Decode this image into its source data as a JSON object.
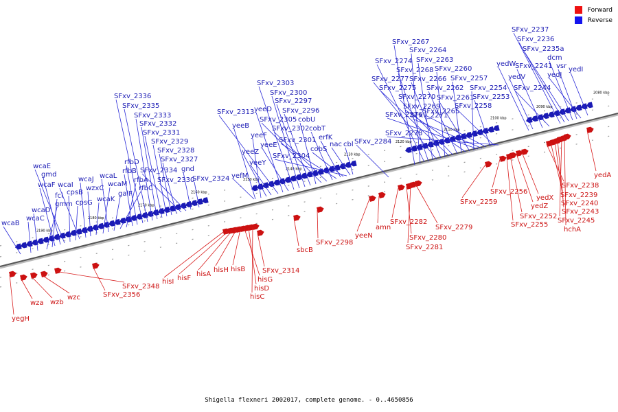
{
  "legend": {
    "forward": {
      "label": "Forward",
      "color": "#ee1111"
    },
    "reverse": {
      "label": "Reverse",
      "color": "#1414ee"
    }
  },
  "caption": "Shigella flexneri 2002017, complete genome. - 0..4650856",
  "axis_color": "#555555",
  "tick_labels": [
    "2080 kbp",
    "2090 kbp",
    "2100 kbp",
    "2110 kbp",
    "2120 kbp",
    "2130 kbp",
    "2140 kbp",
    "2150 kbp",
    "2160 kbp",
    "2170 kbp",
    "2180 kbp",
    "2190 kbp"
  ],
  "reverse_genes": [
    "wcaB",
    "wcaC",
    "wcaD",
    "gmm",
    "fcl",
    "wcaF",
    "gmd",
    "wcaE",
    "cpsB",
    "cpsG",
    "wcaI",
    "wcaJ",
    "wzxC",
    "wcaK",
    "wcaM",
    "wcaL",
    "galF",
    "rfbC",
    "rfbA",
    "rfbB",
    "rfbD",
    "SFxv_2336",
    "SFxv_2335",
    "SFxv_2333",
    "SFxv_2332",
    "SFxv_2331",
    "SFxv_2329",
    "SFxv_2328",
    "SFxv_2327",
    "SFxv_2334",
    "SFxv_2330",
    "gnd",
    "SFxv_2324",
    "yeeB",
    "yeeF",
    "yeeZ",
    "yeeY",
    "yefM",
    "SFxv_2313",
    "yeeD",
    "yeeE",
    "SFxv_2303",
    "SFxv_2300",
    "SFxv_2297",
    "SFxv_2296",
    "cobU",
    "SFxv_2305",
    "SFxv_2302",
    "cobT",
    "SFxv_2301",
    "erfK",
    "cobS",
    "SFxv_2304",
    "nac",
    "cbl",
    "SFxv_2284",
    "SFxv_2267",
    "SFxv_2264",
    "SFxv_2274",
    "SFxv_2268",
    "SFxv_2263",
    "SFxv_2277",
    "SFxv_2266",
    "SFxv_2260",
    "SFxv_2275",
    "SFxv_2270",
    "SFxv_2262",
    "SFxv_2257",
    "SFxv_2269",
    "SFxv_2261",
    "SFxv_2254",
    "SFxv_2276",
    "SFxv_2271",
    "SFxv_2265",
    "SFxv_2253",
    "SFxv_2258",
    "SFxv_2278",
    "SFxv_2237",
    "SFxv_2236",
    "SFxv_2235a",
    "dcm",
    "yedW",
    "SFxv_2241",
    "vsr",
    "yedJ",
    "yedI",
    "yedV",
    "SFxv_2244"
  ],
  "forward_genes": [
    "yegH",
    "wza",
    "wzb",
    "wzc",
    "SFxv_2348",
    "SFxv_2356",
    "hisI",
    "hisF",
    "hisA",
    "hisH",
    "hisB",
    "hisG",
    "hisD",
    "hisC",
    "SFxv_2314",
    "sbcB",
    "SFxv_2298",
    "yeeN",
    "amn",
    "SFxv_2282",
    "SFxv_2280",
    "SFxv_2281",
    "SFxv_2279",
    "SFxv_2259",
    "SFxv_2256",
    "yedX",
    "yedZ",
    "SFxv_2252",
    "SFxv_2255",
    "SFxv_2238",
    "SFxv_2239",
    "SFxv_2240",
    "SFxv_2243",
    "SFxv_2245",
    "hchA",
    "yedA"
  ]
}
